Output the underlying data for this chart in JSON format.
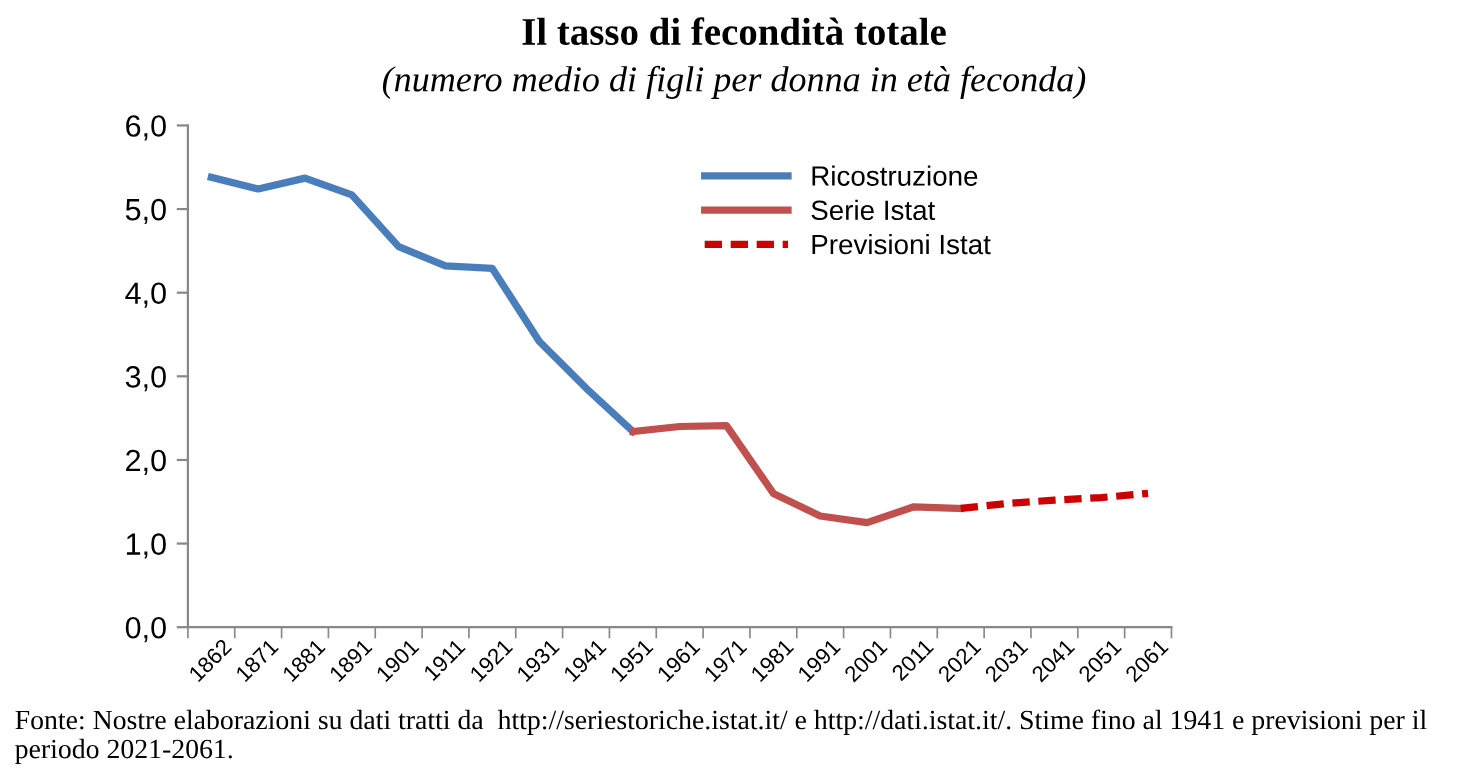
{
  "chart_data": {
    "type": "line",
    "title": "Il tasso di fecondità totale",
    "subtitle": "(numero medio di figli per donna in età feconda)",
    "categories": [
      "1862",
      "1871",
      "1881",
      "1891",
      "1901",
      "1911",
      "1921",
      "1931",
      "1941",
      "1951",
      "1961",
      "1971",
      "1981",
      "1991",
      "2001",
      "2011",
      "2021",
      "2031",
      "2041",
      "2051",
      "2061"
    ],
    "series": [
      {
        "name": "Ricostruzione",
        "color": "#4a7ebb",
        "line_style": "solid",
        "values": [
          5.38,
          5.24,
          5.37,
          5.17,
          4.55,
          4.32,
          4.29,
          3.42,
          2.86,
          2.34,
          null,
          null,
          null,
          null,
          null,
          null,
          null,
          null,
          null,
          null,
          null
        ]
      },
      {
        "name": "Serie Istat",
        "color": "#c0504d",
        "line_style": "solid",
        "values": [
          null,
          null,
          null,
          null,
          null,
          null,
          null,
          null,
          null,
          2.34,
          2.4,
          2.41,
          1.6,
          1.33,
          1.25,
          1.44,
          1.42,
          null,
          null,
          null,
          null
        ]
      },
      {
        "name": "Previsioni Istat",
        "color": "#cc0000",
        "line_style": "dashed",
        "values": [
          null,
          null,
          null,
          null,
          null,
          null,
          null,
          null,
          null,
          null,
          null,
          null,
          null,
          null,
          null,
          null,
          1.42,
          1.48,
          1.52,
          1.55,
          1.6
        ]
      }
    ],
    "ylim": [
      0,
      6
    ],
    "yticks": [
      {
        "value": 0,
        "label": "0,0"
      },
      {
        "value": 1,
        "label": "1,0"
      },
      {
        "value": 2,
        "label": "2,0"
      },
      {
        "value": 3,
        "label": "3,0"
      },
      {
        "value": 4,
        "label": "4,0"
      },
      {
        "value": 5,
        "label": "5,0"
      },
      {
        "value": 6,
        "label": "6,0"
      }
    ],
    "grid": false,
    "legend": "top right",
    "marker": "none",
    "annotations": [
      "Fonte: Nostre elaborazioni su dati tratti da  http://seriestoriche.istat.it/ e http://dati.istat.it/. Stime fino al 1941 e previsioni per il periodo 2021-2061."
    ]
  }
}
